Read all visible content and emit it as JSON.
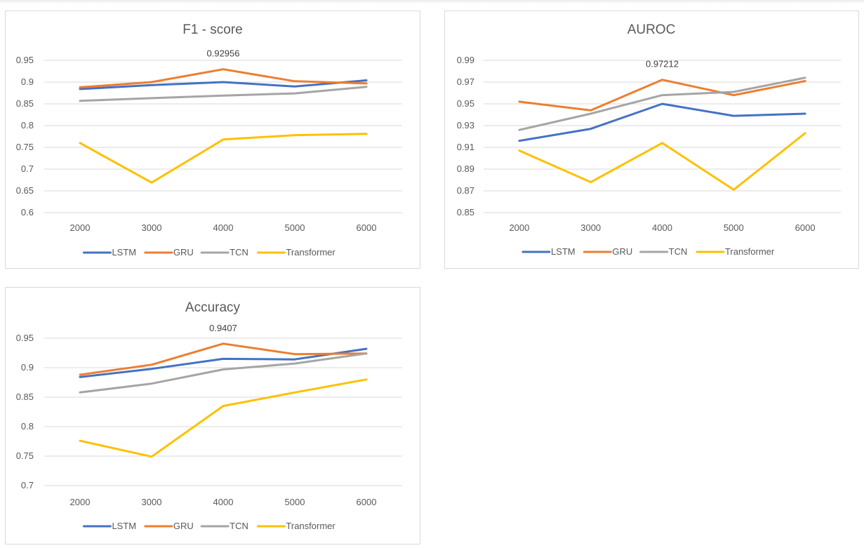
{
  "colors": {
    "LSTM": "#4472c4",
    "GRU": "#ed7d31",
    "TCN": "#a5a5a5",
    "Transformer": "#ffc000"
  },
  "chart_data": [
    {
      "id": "f1",
      "type": "line",
      "title": "F1 - score",
      "categories": [
        "2000",
        "3000",
        "4000",
        "5000",
        "6000"
      ],
      "ylim": [
        0.6,
        0.95
      ],
      "yticks": [
        0.6,
        0.65,
        0.7,
        0.75,
        0.8,
        0.85,
        0.9,
        0.95
      ],
      "ytick_labels": [
        "0.6",
        "0.65",
        "0.7",
        "0.75",
        "0.8",
        "0.85",
        "0.9",
        "0.95"
      ],
      "grid": true,
      "legend": "bottom",
      "series": [
        {
          "name": "LSTM",
          "values": [
            0.884,
            0.893,
            0.9,
            0.89,
            0.904
          ]
        },
        {
          "name": "GRU",
          "values": [
            0.888,
            0.9,
            0.92956,
            0.902,
            0.897
          ]
        },
        {
          "name": "TCN",
          "values": [
            0.857,
            0.863,
            0.869,
            0.874,
            0.889
          ]
        },
        {
          "name": "Transformer",
          "values": [
            0.76,
            0.669,
            0.768,
            0.778,
            0.781
          ]
        }
      ],
      "annotation": {
        "text": "0.92956",
        "series": "GRU",
        "index": 2
      }
    },
    {
      "id": "auroc",
      "type": "line",
      "title": "AUROC",
      "categories": [
        "2000",
        "3000",
        "4000",
        "5000",
        "6000"
      ],
      "ylim": [
        0.85,
        0.99
      ],
      "yticks": [
        0.85,
        0.87,
        0.89,
        0.91,
        0.93,
        0.95,
        0.97,
        0.99
      ],
      "ytick_labels": [
        "0.85",
        "0.87",
        "0.89",
        "0.91",
        "0.93",
        "0.95",
        "0.97",
        "0.99"
      ],
      "grid": true,
      "legend": "bottom",
      "series": [
        {
          "name": "LSTM",
          "values": [
            0.916,
            0.927,
            0.95,
            0.939,
            0.941
          ]
        },
        {
          "name": "GRU",
          "values": [
            0.952,
            0.944,
            0.97212,
            0.958,
            0.971
          ]
        },
        {
          "name": "TCN",
          "values": [
            0.926,
            0.941,
            0.958,
            0.961,
            0.974
          ]
        },
        {
          "name": "Transformer",
          "values": [
            0.907,
            0.878,
            0.914,
            0.871,
            0.923
          ]
        }
      ],
      "annotation": {
        "text": "0.97212",
        "series": "GRU",
        "index": 2
      }
    },
    {
      "id": "acc",
      "type": "line",
      "title": "Accuracy",
      "categories": [
        "2000",
        "3000",
        "4000",
        "5000",
        "6000"
      ],
      "ylim": [
        0.7,
        0.95
      ],
      "yticks": [
        0.7,
        0.75,
        0.8,
        0.85,
        0.9,
        0.95
      ],
      "ytick_labels": [
        "0.7",
        "0.75",
        "0.8",
        "0.85",
        "0.9",
        "0.95"
      ],
      "grid": true,
      "legend": "bottom",
      "series": [
        {
          "name": "LSTM",
          "values": [
            0.884,
            0.898,
            0.915,
            0.914,
            0.932
          ]
        },
        {
          "name": "GRU",
          "values": [
            0.888,
            0.905,
            0.9407,
            0.923,
            0.924
          ]
        },
        {
          "name": "TCN",
          "values": [
            0.858,
            0.873,
            0.897,
            0.907,
            0.924
          ]
        },
        {
          "name": "Transformer",
          "values": [
            0.776,
            0.749,
            0.835,
            0.858,
            0.88
          ]
        }
      ],
      "annotation": {
        "text": "0.9407",
        "series": "GRU",
        "index": 2
      }
    }
  ]
}
